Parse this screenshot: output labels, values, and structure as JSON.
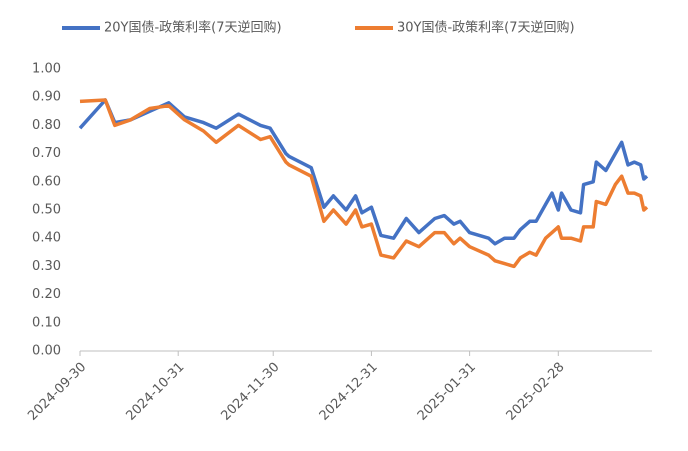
{
  "chart_data": {
    "type": "line",
    "x": [
      "2024-09-30",
      "2024-10-08",
      "2024-10-11",
      "2024-10-16",
      "2024-10-22",
      "2024-10-28",
      "2024-11-02",
      "2024-11-08",
      "2024-11-12",
      "2024-11-19",
      "2024-11-26",
      "2024-11-29",
      "2024-12-04",
      "2024-12-05",
      "2024-12-12",
      "2024-12-16",
      "2024-12-19",
      "2024-12-23",
      "2024-12-26",
      "2024-12-28",
      "2024-12-31",
      "2025-01-03",
      "2025-01-07",
      "2025-01-11",
      "2025-01-15",
      "2025-01-20",
      "2025-01-23",
      "2025-01-26",
      "2025-01-28",
      "2025-01-31",
      "2025-02-06",
      "2025-02-08",
      "2025-02-11",
      "2025-02-14",
      "2025-02-16",
      "2025-02-19",
      "2025-02-21",
      "2025-02-24",
      "2025-02-26",
      "2025-02-28",
      "2025-03-01",
      "2025-03-04",
      "2025-03-07",
      "2025-03-08",
      "2025-03-11",
      "2025-03-12",
      "2025-03-15",
      "2025-03-18",
      "2025-03-20",
      "2025-03-22",
      "2025-03-24",
      "2025-03-26",
      "2025-03-27",
      "2025-03-28"
    ],
    "series": [
      {
        "name": "20Y国债-政策利率(7天逆回购)",
        "color": "#4472c4",
        "values": [
          0.79,
          0.89,
          0.81,
          0.82,
          0.85,
          0.88,
          0.83,
          0.81,
          0.79,
          0.84,
          0.8,
          0.79,
          0.7,
          0.69,
          0.65,
          0.51,
          0.55,
          0.5,
          0.55,
          0.49,
          0.51,
          0.41,
          0.4,
          0.47,
          0.42,
          0.47,
          0.48,
          0.45,
          0.46,
          0.42,
          0.4,
          0.38,
          0.4,
          0.4,
          0.43,
          0.46,
          0.46,
          0.52,
          0.56,
          0.5,
          0.56,
          0.5,
          0.49,
          0.59,
          0.6,
          0.67,
          0.64,
          0.7,
          0.74,
          0.66,
          0.67,
          0.66,
          0.61,
          0.62
        ]
      },
      {
        "name": "30Y国债-政策利率(7天逆回购)",
        "color": "#ed7d31",
        "values": [
          0.885,
          0.89,
          0.8,
          0.82,
          0.86,
          0.87,
          0.82,
          0.78,
          0.74,
          0.8,
          0.75,
          0.76,
          0.67,
          0.66,
          0.62,
          0.46,
          0.5,
          0.45,
          0.5,
          0.44,
          0.45,
          0.34,
          0.33,
          0.39,
          0.37,
          0.42,
          0.42,
          0.38,
          0.4,
          0.37,
          0.34,
          0.32,
          0.31,
          0.3,
          0.33,
          0.35,
          0.34,
          0.4,
          0.42,
          0.44,
          0.4,
          0.4,
          0.39,
          0.44,
          0.44,
          0.53,
          0.52,
          0.59,
          0.62,
          0.56,
          0.56,
          0.55,
          0.5,
          0.51
        ]
      }
    ],
    "xlim": [
      "2024-09-30",
      "2025-03-28"
    ],
    "xticks": [
      "2024-09-30",
      "2024-10-31",
      "2024-11-30",
      "2024-12-31",
      "2025-01-31",
      "2025-02-28"
    ],
    "ylim": [
      0,
      1
    ],
    "yticks": [
      {
        "value": 0,
        "label": "0.00"
      },
      {
        "value": 0.1,
        "label": "0.10"
      },
      {
        "value": 0.2,
        "label": "0.20"
      },
      {
        "value": 0.3,
        "label": "0.30"
      },
      {
        "value": 0.4,
        "label": "0.40"
      },
      {
        "value": 0.5,
        "label": "0.50"
      },
      {
        "value": 0.6,
        "label": "0.60"
      },
      {
        "value": 0.7,
        "label": "0.70"
      },
      {
        "value": 0.8,
        "label": "0.80"
      },
      {
        "value": 0.9,
        "label": "0.90"
      },
      {
        "value": 1,
        "label": "1.00"
      }
    ],
    "grid": false,
    "legend": "top"
  }
}
